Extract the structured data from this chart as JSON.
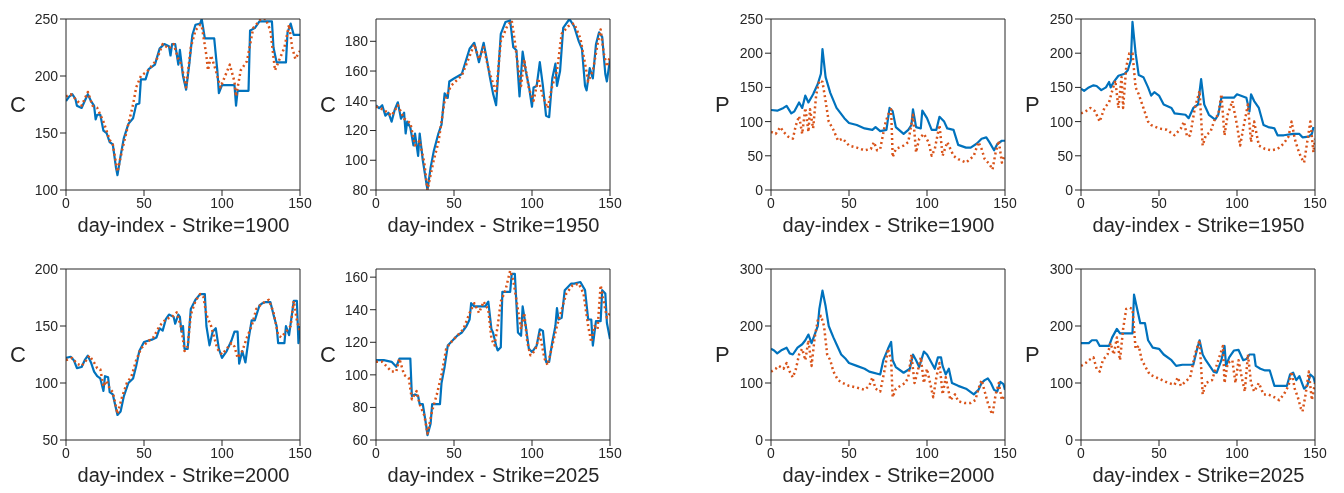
{
  "chart_data": [
    {
      "type": "line",
      "ylabel": "C",
      "xlabel": "day-index - Strike=1900",
      "xlim": [
        0,
        150
      ],
      "xticks": [
        0,
        50,
        100,
        150
      ],
      "ylim": [
        100,
        250
      ],
      "yticks": [
        100,
        150,
        200,
        250
      ],
      "marker": "none",
      "series": [
        {
          "color": "#0072bd",
          "line_style": "solid",
          "x": [
            0,
            2,
            4,
            6,
            7,
            10,
            12,
            14,
            16,
            18,
            19,
            20,
            22,
            24,
            26,
            28,
            30,
            32,
            33,
            35,
            37,
            40,
            43,
            45,
            47,
            48,
            51,
            53,
            57,
            60,
            63,
            66,
            67,
            68,
            70,
            72,
            73,
            75,
            77,
            79,
            81,
            83,
            86,
            87,
            89,
            95,
            97,
            98,
            100,
            108,
            109,
            110,
            117,
            118,
            121,
            124,
            132,
            133,
            135,
            141,
            142,
            144,
            146,
            150
          ],
          "values": [
            178,
            182,
            184,
            180,
            174,
            172,
            178,
            184,
            178,
            174,
            162,
            166,
            166,
            152,
            150,
            142,
            140,
            120,
            113,
            130,
            145,
            158,
            163,
            175,
            176,
            197,
            197,
            206,
            210,
            224,
            228,
            226,
            218,
            228,
            228,
            210,
            223,
            200,
            188,
            210,
            236,
            245,
            246,
            250,
            233,
            233,
            205,
            185,
            192,
            192,
            174,
            187,
            187,
            240,
            242,
            248,
            248,
            225,
            212,
            212,
            238,
            246,
            236,
            236
          ]
        },
        {
          "color": "#d95319",
          "line_style": "dotted",
          "x": [
            0,
            3,
            6,
            10,
            14,
            17,
            20,
            24,
            28,
            30,
            33,
            36,
            40,
            43,
            45,
            48,
            52,
            58,
            62,
            66,
            69,
            72,
            74,
            77,
            80,
            83,
            86,
            87,
            90,
            91,
            93,
            96,
            99,
            102,
            105,
            108,
            109,
            112,
            116,
            120,
            125,
            128,
            131,
            134,
            137,
            140,
            143,
            145,
            147,
            150
          ],
          "values": [
            182,
            184,
            180,
            174,
            186,
            174,
            172,
            160,
            144,
            140,
            116,
            135,
            158,
            175,
            190,
            200,
            204,
            214,
            228,
            224,
            228,
            215,
            210,
            190,
            225,
            240,
            245,
            244,
            218,
            205,
            218,
            205,
            190,
            200,
            210,
            195,
            182,
            205,
            213,
            242,
            250,
            250,
            240,
            205,
            215,
            225,
            245,
            225,
            215,
            222
          ]
        }
      ]
    },
    {
      "type": "line",
      "ylabel": "C",
      "xlabel": "day-index - Strike=1950",
      "xlim": [
        0,
        150
      ],
      "xticks": [
        0,
        50,
        100,
        150
      ],
      "ylim": [
        80,
        195
      ],
      "yticks": [
        80,
        100,
        120,
        140,
        160,
        180
      ],
      "marker": "none",
      "series": [
        {
          "color": "#0072bd",
          "line_style": "solid",
          "x": [
            0,
            2,
            4,
            6,
            8,
            10,
            12,
            14,
            16,
            18,
            19,
            20,
            22,
            24,
            25,
            27,
            28,
            30,
            33,
            35,
            37,
            40,
            42,
            44,
            46,
            47,
            50,
            55,
            60,
            63,
            66,
            69,
            71,
            73,
            75,
            77,
            80,
            83,
            86,
            88,
            90,
            92,
            94,
            96,
            98,
            100,
            101,
            103,
            105,
            107,
            109,
            111,
            113,
            115,
            116,
            118,
            120,
            124,
            127,
            130,
            132,
            134,
            135,
            137,
            139,
            141,
            143,
            145,
            147,
            148,
            150
          ],
          "values": [
            137,
            135,
            137,
            130,
            132,
            126,
            134,
            139,
            128,
            132,
            118,
            126,
            122,
            110,
            118,
            103,
            118,
            100,
            80,
            95,
            106,
            118,
            124,
            145,
            142,
            153,
            155,
            158,
            175,
            179,
            166,
            179,
            168,
            156,
            145,
            137,
            185,
            193,
            194,
            176,
            174,
            143,
            173,
            160,
            150,
            136,
            149,
            150,
            166,
            150,
            130,
            129,
            155,
            165,
            150,
            160,
            189,
            195,
            190,
            180,
            175,
            150,
            147,
            162,
            155,
            178,
            186,
            183,
            158,
            153,
            168
          ]
        },
        {
          "color": "#d95319",
          "line_style": "dotted",
          "x": [
            0,
            5,
            10,
            14,
            18,
            22,
            25,
            28,
            31,
            33,
            37,
            40,
            44,
            48,
            55,
            60,
            63,
            66,
            69,
            72,
            74,
            77,
            80,
            84,
            87,
            89,
            91,
            93,
            95,
            98,
            101,
            104,
            107,
            110,
            113,
            116,
            119,
            123,
            127,
            131,
            134,
            136,
            139,
            142,
            144,
            146,
            148,
            150
          ],
          "values": [
            136,
            134,
            130,
            137,
            128,
            125,
            110,
            113,
            98,
            80,
            100,
            112,
            140,
            150,
            157,
            170,
            178,
            168,
            176,
            162,
            155,
            145,
            180,
            190,
            194,
            180,
            163,
            150,
            168,
            148,
            140,
            155,
            143,
            135,
            150,
            160,
            185,
            190,
            192,
            182,
            165,
            153,
            160,
            178,
            188,
            172,
            163,
            170
          ]
        }
      ]
    },
    {
      "type": "line",
      "ylabel": "P",
      "xlabel": "day-index - Strike=1900",
      "xlim": [
        0,
        150
      ],
      "xticks": [
        0,
        50,
        100,
        150
      ],
      "ylim": [
        0,
        250
      ],
      "yticks": [
        0,
        50,
        100,
        150,
        200,
        250
      ],
      "marker": "none",
      "series": [
        {
          "color": "#0072bd",
          "line_style": "solid",
          "x": [
            0,
            4,
            8,
            10,
            13,
            15,
            18,
            20,
            22,
            24,
            27,
            30,
            32,
            33,
            35,
            38,
            42,
            47,
            50,
            55,
            60,
            65,
            67,
            70,
            74,
            76,
            78,
            80,
            85,
            88,
            90,
            91,
            93,
            96,
            97,
            100,
            103,
            106,
            108,
            111,
            113,
            117,
            120,
            125,
            128,
            132,
            135,
            138,
            140,
            143,
            145,
            148,
            150
          ],
          "values": [
            117,
            116,
            120,
            123,
            112,
            115,
            128,
            120,
            138,
            128,
            140,
            155,
            170,
            206,
            165,
            142,
            120,
            105,
            98,
            95,
            90,
            88,
            92,
            86,
            88,
            120,
            115,
            92,
            82,
            88,
            95,
            118,
            92,
            90,
            116,
            105,
            88,
            88,
            107,
            100,
            90,
            88,
            66,
            62,
            62,
            68,
            75,
            77,
            70,
            58,
            67,
            72,
            72
          ]
        },
        {
          "color": "#d95319",
          "line_style": "dotted",
          "x": [
            0,
            3,
            6,
            8,
            11,
            14,
            16,
            18,
            20,
            22,
            24,
            25,
            27,
            29,
            31,
            33,
            35,
            37,
            40,
            43,
            46,
            50,
            55,
            60,
            64,
            66,
            68,
            70,
            73,
            75,
            77,
            78,
            80,
            85,
            88,
            91,
            93,
            95,
            98,
            101,
            103,
            105,
            108,
            110,
            113,
            117,
            120,
            125,
            130,
            133,
            135,
            137,
            140,
            142,
            144,
            146,
            148,
            150
          ],
          "values": [
            85,
            82,
            92,
            85,
            78,
            75,
            95,
            108,
            82,
            120,
            85,
            118,
            90,
            140,
            160,
            158,
            130,
            100,
            88,
            72,
            75,
            65,
            62,
            58,
            60,
            70,
            58,
            60,
            95,
            110,
            118,
            48,
            60,
            65,
            70,
            110,
            55,
            75,
            82,
            70,
            50,
            60,
            95,
            50,
            70,
            50,
            45,
            40,
            50,
            70,
            60,
            45,
            38,
            30,
            55,
            72,
            40,
            52
          ]
        }
      ]
    },
    {
      "type": "line",
      "ylabel": "P",
      "xlabel": "day-index - Strike=1950",
      "xlim": [
        0,
        150
      ],
      "xticks": [
        0,
        50,
        100,
        150
      ],
      "ylim": [
        0,
        250
      ],
      "yticks": [
        0,
        50,
        100,
        150,
        200,
        250
      ],
      "marker": "none",
      "series": [
        {
          "color": "#0072bd",
          "line_style": "solid",
          "x": [
            0,
            2,
            5,
            8,
            10,
            13,
            16,
            18,
            19,
            21,
            24,
            28,
            30,
            32,
            33,
            35,
            37,
            40,
            43,
            45,
            47,
            50,
            53,
            58,
            60,
            67,
            69,
            72,
            75,
            77,
            79,
            82,
            86,
            88,
            90,
            98,
            100,
            106,
            108,
            109,
            111,
            114,
            117,
            120,
            124,
            126,
            130,
            136,
            140,
            142,
            146,
            148,
            149
          ],
          "values": [
            148,
            145,
            150,
            153,
            152,
            146,
            150,
            158,
            150,
            158,
            167,
            170,
            175,
            190,
            246,
            200,
            168,
            165,
            150,
            138,
            143,
            138,
            125,
            120,
            112,
            110,
            105,
            120,
            125,
            162,
            125,
            110,
            103,
            110,
            135,
            135,
            140,
            135,
            115,
            140,
            130,
            120,
            95,
            92,
            90,
            80,
            80,
            82,
            82,
            77,
            78,
            82,
            92
          ]
        },
        {
          "color": "#d95319",
          "line_style": "dotted",
          "x": [
            0,
            3,
            6,
            9,
            12,
            15,
            18,
            20,
            22,
            24,
            26,
            27,
            29,
            31,
            33,
            35,
            37,
            40,
            43,
            45,
            50,
            55,
            60,
            64,
            66,
            68,
            70,
            73,
            76,
            78,
            80,
            83,
            86,
            88,
            90,
            92,
            94,
            97,
            100,
            102,
            104,
            107,
            109,
            111,
            114,
            118,
            122,
            126,
            130,
            133,
            135,
            137,
            139,
            141,
            143,
            145,
            147,
            149,
            150
          ],
          "values": [
            112,
            115,
            120,
            115,
            100,
            120,
            128,
            145,
            160,
            120,
            165,
            120,
            180,
            200,
            200,
            150,
            140,
            120,
            100,
            95,
            90,
            88,
            80,
            90,
            100,
            78,
            80,
            120,
            145,
            65,
            80,
            85,
            105,
            110,
            140,
            80,
            110,
            130,
            95,
            65,
            90,
            125,
            70,
            100,
            65,
            60,
            58,
            60,
            68,
            78,
            100,
            75,
            60,
            48,
            40,
            70,
            100,
            55,
            75
          ]
        }
      ]
    },
    {
      "type": "line",
      "ylabel": "C",
      "xlabel": "day-index - Strike=2000",
      "xlim": [
        0,
        150
      ],
      "xticks": [
        0,
        50,
        100,
        150
      ],
      "ylim": [
        50,
        200
      ],
      "yticks": [
        50,
        100,
        150,
        200
      ],
      "marker": "none",
      "series": [
        {
          "color": "#0072bd",
          "line_style": "solid",
          "x": [
            0,
            3,
            5,
            7,
            10,
            12,
            14,
            16,
            18,
            20,
            22,
            24,
            25,
            27,
            28,
            30,
            33,
            35,
            37,
            40,
            43,
            45,
            47,
            50,
            55,
            58,
            60,
            62,
            64,
            66,
            69,
            70,
            72,
            73,
            74,
            75,
            76,
            78,
            80,
            83,
            86,
            89,
            90,
            92,
            94,
            96,
            98,
            100,
            103,
            106,
            108,
            110,
            111,
            113,
            115,
            117,
            119,
            121,
            124,
            126,
            128,
            131,
            133,
            135,
            136,
            140,
            141,
            143,
            145,
            146,
            148,
            149,
            150
          ],
          "values": [
            122,
            123,
            120,
            113,
            114,
            120,
            124,
            118,
            110,
            106,
            104,
            93,
            106,
            105,
            92,
            90,
            72,
            75,
            88,
            100,
            104,
            115,
            128,
            136,
            138,
            140,
            148,
            146,
            156,
            160,
            158,
            152,
            160,
            158,
            145,
            150,
            130,
            130,
            165,
            173,
            178,
            178,
            150,
            133,
            145,
            148,
            130,
            122,
            128,
            137,
            145,
            145,
            117,
            128,
            118,
            138,
            155,
            155,
            168,
            170,
            171,
            171,
            160,
            150,
            135,
            135,
            150,
            142,
            162,
            172,
            172,
            135,
            150
          ]
        },
        {
          "color": "#d95319",
          "line_style": "dotted",
          "x": [
            0,
            4,
            7,
            10,
            13,
            15,
            18,
            20,
            22,
            24,
            26,
            28,
            30,
            33,
            36,
            39,
            42,
            45,
            48,
            52,
            56,
            60,
            64,
            68,
            71,
            74,
            76,
            78,
            80,
            83,
            86,
            88,
            90,
            93,
            95,
            97,
            100,
            103,
            106,
            108,
            110,
            113,
            116,
            119,
            122,
            126,
            130,
            133,
            136,
            138,
            141,
            144,
            146,
            148,
            150
          ],
          "values": [
            120,
            122,
            117,
            115,
            120,
            124,
            118,
            113,
            112,
            97,
            102,
            95,
            92,
            73,
            88,
            100,
            106,
            120,
            130,
            136,
            140,
            150,
            156,
            158,
            162,
            148,
            128,
            132,
            160,
            172,
            178,
            176,
            160,
            150,
            140,
            130,
            125,
            130,
            135,
            132,
            122,
            128,
            140,
            150,
            165,
            170,
            173,
            162,
            142,
            140,
            145,
            150,
            172,
            155,
            145
          ]
        }
      ]
    },
    {
      "type": "line",
      "ylabel": "C",
      "xlabel": "day-index - Strike=2025",
      "xlim": [
        0,
        150
      ],
      "xticks": [
        0,
        50,
        100,
        150
      ],
      "ylim": [
        60,
        165
      ],
      "yticks": [
        60,
        80,
        100,
        120,
        140,
        160
      ],
      "marker": "none",
      "series": [
        {
          "color": "#0072bd",
          "line_style": "solid",
          "x": [
            0,
            5,
            10,
            13,
            15,
            22,
            23,
            25,
            27,
            28,
            30,
            32,
            33,
            35,
            36,
            41,
            42,
            44,
            46,
            48,
            52,
            55,
            58,
            60,
            61,
            63,
            70,
            72,
            74,
            75,
            77,
            78,
            80,
            81,
            86,
            87,
            89,
            91,
            93,
            94,
            96,
            98,
            100,
            103,
            105,
            107,
            109,
            111,
            113,
            115,
            116,
            117,
            119,
            121,
            125,
            127,
            131,
            134,
            136,
            138,
            139,
            141,
            144,
            145,
            147,
            148,
            150
          ],
          "values": [
            109,
            109,
            108,
            105,
            110,
            110,
            87,
            88,
            87,
            82,
            82,
            70,
            63,
            70,
            82,
            82,
            95,
            105,
            118,
            120,
            124,
            126,
            130,
            134,
            144,
            142,
            142,
            145,
            128,
            126,
            118,
            115,
            117,
            151,
            151,
            162,
            162,
            126,
            124,
            142,
            130,
            116,
            114,
            118,
            128,
            127,
            108,
            108,
            120,
            130,
            141,
            134,
            135,
            152,
            156,
            156,
            157,
            152,
            134,
            134,
            118,
            133,
            133,
            152,
            150,
            132,
            122
          ]
        },
        {
          "color": "#d95319",
          "line_style": "dotted",
          "x": [
            0,
            4,
            7,
            10,
            13,
            15,
            18,
            21,
            23,
            26,
            28,
            31,
            33,
            36,
            39,
            42,
            45,
            48,
            52,
            56,
            60,
            63,
            66,
            69,
            72,
            74,
            76,
            78,
            80,
            83,
            86,
            88,
            91,
            93,
            95,
            97,
            99,
            102,
            105,
            108,
            110,
            113,
            116,
            119,
            122,
            126,
            130,
            133,
            136,
            138,
            140,
            142,
            144,
            146,
            148,
            150
          ],
          "values": [
            108,
            108,
            105,
            102,
            102,
            110,
            100,
            98,
            85,
            90,
            82,
            75,
            64,
            78,
            88,
            100,
            116,
            120,
            124,
            128,
            138,
            144,
            138,
            145,
            140,
            122,
            118,
            130,
            145,
            152,
            164,
            158,
            140,
            128,
            138,
            120,
            112,
            115,
            125,
            110,
            106,
            118,
            130,
            140,
            150,
            155,
            156,
            150,
            130,
            120,
            130,
            128,
            155,
            145,
            135,
            138
          ]
        }
      ]
    },
    {
      "type": "line",
      "ylabel": "P",
      "xlabel": "day-index - Strike=2000",
      "xlim": [
        0,
        150
      ],
      "xticks": [
        0,
        50,
        100,
        150
      ],
      "ylim": [
        0,
        300
      ],
      "yticks": [
        0,
        100,
        200,
        300
      ],
      "marker": "none",
      "series": [
        {
          "color": "#0072bd",
          "line_style": "solid",
          "x": [
            0,
            2,
            4,
            7,
            10,
            12,
            14,
            17,
            20,
            22,
            24,
            26,
            28,
            30,
            31,
            33,
            35,
            37,
            40,
            42,
            45,
            48,
            50,
            55,
            60,
            63,
            70,
            72,
            75,
            77,
            78,
            80,
            85,
            89,
            91,
            93,
            95,
            98,
            100,
            103,
            105,
            107,
            109,
            110,
            112,
            114,
            116,
            120,
            125,
            130,
            133,
            135,
            137,
            139,
            141,
            143,
            145,
            147,
            149,
            150
          ],
          "values": [
            160,
            157,
            152,
            158,
            162,
            152,
            150,
            162,
            168,
            175,
            185,
            170,
            185,
            200,
            230,
            262,
            235,
            200,
            180,
            168,
            150,
            142,
            135,
            130,
            125,
            120,
            115,
            140,
            160,
            172,
            140,
            128,
            118,
            125,
            150,
            140,
            128,
            155,
            150,
            135,
            125,
            145,
            145,
            130,
            115,
            125,
            100,
            95,
            90,
            80,
            88,
            100,
            105,
            108,
            100,
            88,
            85,
            102,
            98,
            88
          ]
        },
        {
          "color": "#d95319",
          "line_style": "dotted",
          "x": [
            0,
            3,
            5,
            8,
            10,
            12,
            14,
            16,
            18,
            20,
            22,
            24,
            26,
            28,
            30,
            32,
            34,
            36,
            38,
            40,
            43,
            46,
            50,
            55,
            60,
            63,
            65,
            67,
            70,
            73,
            75,
            77,
            78,
            80,
            83,
            86,
            88,
            90,
            92,
            94,
            96,
            98,
            100,
            102,
            104,
            106,
            108,
            110,
            112,
            115,
            118,
            120,
            124,
            128,
            131,
            133,
            135,
            137,
            139,
            141,
            142,
            144,
            146,
            148,
            150
          ],
          "values": [
            120,
            125,
            130,
            125,
            135,
            120,
            110,
            125,
            150,
            160,
            140,
            175,
            130,
            180,
            210,
            218,
            200,
            150,
            140,
            120,
            105,
            100,
            95,
            92,
            88,
            95,
            110,
            90,
            85,
            125,
            160,
            140,
            75,
            90,
            95,
            100,
            110,
            150,
            100,
            120,
            145,
            100,
            125,
            100,
            75,
            110,
            135,
            80,
            110,
            70,
            80,
            68,
            65,
            65,
            70,
            90,
            105,
            85,
            65,
            50,
            45,
            80,
            100,
            70,
            80
          ]
        }
      ]
    },
    {
      "type": "line",
      "ylabel": "P",
      "xlabel": "day-index - Strike=2025",
      "xlim": [
        0,
        150
      ],
      "xticks": [
        0,
        50,
        100,
        150
      ],
      "ylim": [
        0,
        300
      ],
      "yticks": [
        0,
        100,
        200,
        300
      ],
      "marker": "none",
      "series": [
        {
          "color": "#0072bd",
          "line_style": "solid",
          "x": [
            0,
            5,
            7,
            10,
            12,
            18,
            20,
            23,
            25,
            33,
            34,
            36,
            38,
            41,
            43,
            46,
            50,
            53,
            58,
            61,
            65,
            72,
            74,
            76,
            78,
            80,
            85,
            87,
            90,
            92,
            93,
            95,
            98,
            101,
            104,
            106,
            108,
            111,
            112,
            115,
            118,
            121,
            124,
            132,
            134,
            136,
            138,
            140,
            143,
            145,
            147,
            149,
            150
          ],
          "values": [
            170,
            170,
            175,
            175,
            165,
            165,
            180,
            195,
            187,
            187,
            255,
            230,
            205,
            205,
            175,
            162,
            160,
            150,
            140,
            130,
            132,
            132,
            155,
            175,
            150,
            140,
            120,
            118,
            140,
            165,
            130,
            145,
            157,
            158,
            140,
            142,
            150,
            150,
            130,
            125,
            122,
            122,
            95,
            95,
            115,
            118,
            105,
            112,
            90,
            95,
            115,
            110,
            100
          ]
        },
        {
          "color": "#d95319",
          "line_style": "dotted",
          "x": [
            0,
            3,
            5,
            8,
            10,
            12,
            14,
            17,
            19,
            21,
            23,
            25,
            27,
            29,
            31,
            33,
            35,
            37,
            39,
            41,
            44,
            48,
            52,
            56,
            60,
            62,
            64,
            66,
            70,
            73,
            76,
            78,
            80,
            84,
            88,
            91,
            92,
            94,
            97,
            99,
            101,
            103,
            105,
            107,
            109,
            111,
            114,
            117,
            120,
            124,
            127,
            130,
            133,
            135,
            137,
            139,
            141,
            142,
            144,
            146,
            148,
            150
          ],
          "values": [
            130,
            135,
            140,
            145,
            125,
            120,
            140,
            150,
            170,
            150,
            180,
            140,
            195,
            230,
            232,
            230,
            160,
            165,
            140,
            130,
            115,
            110,
            105,
            100,
            97,
            110,
            95,
            100,
            110,
            150,
            175,
            80,
            100,
            105,
            140,
            165,
            100,
            135,
            140,
            100,
            140,
            110,
            85,
            150,
            100,
            85,
            100,
            80,
            80,
            75,
            70,
            80,
            95,
            120,
            90,
            75,
            55,
            50,
            80,
            120,
            70,
            100
          ]
        }
      ]
    }
  ]
}
